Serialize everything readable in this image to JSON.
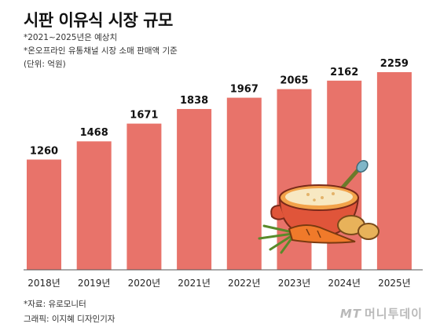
{
  "title": "시판 이유식 시장 규모",
  "notes": [
    "*2021~2025년은 예상치",
    "*온오프라인 유통채널 시장 소매 판매액 기준",
    "(단위: 억원)"
  ],
  "chart_data": {
    "type": "bar",
    "title": "시판 이유식 시장 규모",
    "categories": [
      "2018년",
      "2019년",
      "2020년",
      "2021년",
      "2022년",
      "2023년",
      "2024년",
      "2025년"
    ],
    "values": [
      1260,
      1468,
      1671,
      1838,
      1967,
      2065,
      2162,
      2259
    ],
    "unit": "억원",
    "ylim": [
      0,
      2259
    ],
    "grid": false,
    "bar_color": "#e8736a"
  },
  "source": "*자료: 유로모니터",
  "credit": "그래픽: 이지혜 디자인기자",
  "brand": {
    "mt": "MT",
    "name": "머니투데이"
  }
}
